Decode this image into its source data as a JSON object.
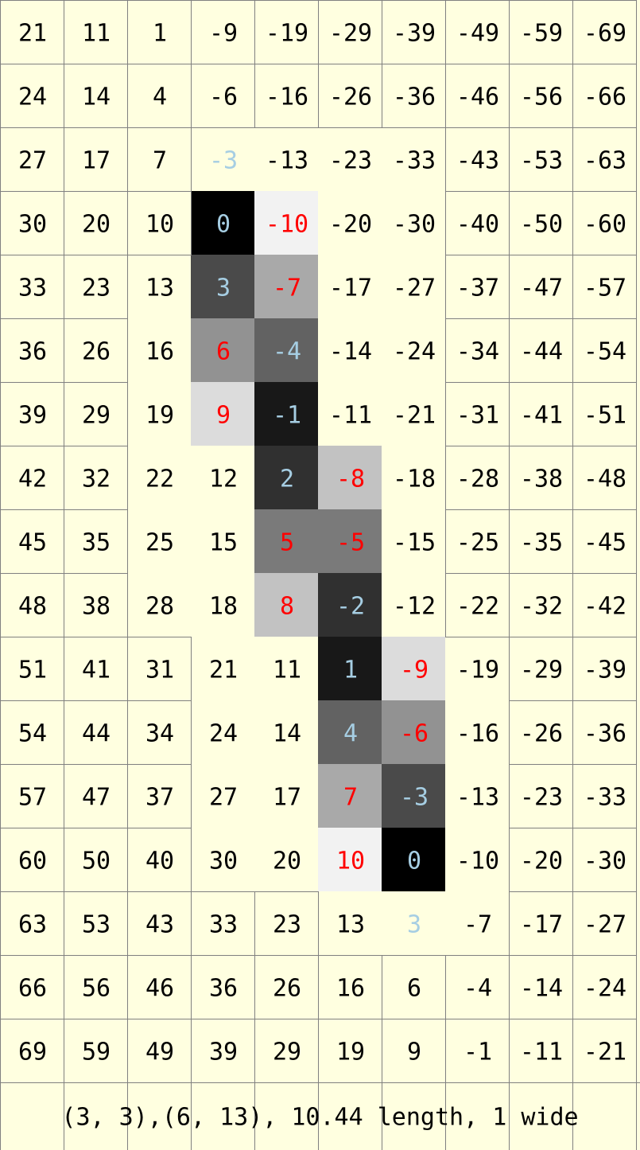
{
  "grid": {
    "columns": 10,
    "rows": [
      [
        "21",
        "11",
        "1",
        "-9",
        "-19",
        "-29",
        "-39",
        "-49",
        "-59",
        "-69"
      ],
      [
        "24",
        "14",
        "4",
        "-6",
        "-16",
        "-26",
        "-36",
        "-46",
        "-56",
        "-66"
      ],
      [
        "27",
        "17",
        "7",
        "-3",
        "-13",
        "-23",
        "-33",
        "-43",
        "-53",
        "-63"
      ],
      [
        "30",
        "20",
        "10",
        "0",
        "-10",
        "-20",
        "-30",
        "-40",
        "-50",
        "-60"
      ],
      [
        "33",
        "23",
        "13",
        "3",
        "-7",
        "-17",
        "-27",
        "-37",
        "-47",
        "-57"
      ],
      [
        "36",
        "26",
        "16",
        "6",
        "-4",
        "-14",
        "-24",
        "-34",
        "-44",
        "-54"
      ],
      [
        "39",
        "29",
        "19",
        "9",
        "-1",
        "-11",
        "-21",
        "-31",
        "-41",
        "-51"
      ],
      [
        "42",
        "32",
        "22",
        "12",
        "2",
        "-8",
        "-18",
        "-28",
        "-38",
        "-48"
      ],
      [
        "45",
        "35",
        "25",
        "15",
        "5",
        "-5",
        "-15",
        "-25",
        "-35",
        "-45"
      ],
      [
        "48",
        "38",
        "28",
        "18",
        "8",
        "-2",
        "-12",
        "-22",
        "-32",
        "-42"
      ],
      [
        "51",
        "41",
        "31",
        "21",
        "11",
        "1",
        "-9",
        "-19",
        "-29",
        "-39"
      ],
      [
        "54",
        "44",
        "34",
        "24",
        "14",
        "4",
        "-6",
        "-16",
        "-26",
        "-36"
      ],
      [
        "57",
        "47",
        "37",
        "27",
        "17",
        "7",
        "-3",
        "-13",
        "-23",
        "-33"
      ],
      [
        "60",
        "50",
        "40",
        "30",
        "20",
        "10",
        "0",
        "-10",
        "-20",
        "-30"
      ],
      [
        "63",
        "53",
        "43",
        "33",
        "23",
        "13",
        "3",
        "-7",
        "-17",
        "-27"
      ],
      [
        "66",
        "56",
        "46",
        "36",
        "26",
        "16",
        "6",
        "-4",
        "-14",
        "-24"
      ],
      [
        "69",
        "59",
        "49",
        "39",
        "29",
        "19",
        "9",
        "-1",
        "-11",
        "-21"
      ]
    ],
    "highlighted_cells": [
      {
        "row": 2,
        "col": 3,
        "shade": "#ffffe0",
        "text_color": "#a6cee3"
      },
      {
        "row": 3,
        "col": 3,
        "shade": "#000000",
        "text_color": "#a6cee3"
      },
      {
        "row": 3,
        "col": 4,
        "shade": "#f2f2f2",
        "text_color": "#ff0000"
      },
      {
        "row": 4,
        "col": 3,
        "shade": "#4a4a4a",
        "text_color": "#a6cee3"
      },
      {
        "row": 4,
        "col": 4,
        "shade": "#a9a9a9",
        "text_color": "#ff0000"
      },
      {
        "row": 5,
        "col": 3,
        "shade": "#929292",
        "text_color": "#ff0000"
      },
      {
        "row": 5,
        "col": 4,
        "shade": "#626262",
        "text_color": "#a6cee3"
      },
      {
        "row": 6,
        "col": 3,
        "shade": "#dcdcdc",
        "text_color": "#ff0000"
      },
      {
        "row": 6,
        "col": 4,
        "shade": "#181818",
        "text_color": "#a6cee3"
      },
      {
        "row": 7,
        "col": 4,
        "shade": "#303030",
        "text_color": "#a6cee3"
      },
      {
        "row": 7,
        "col": 5,
        "shade": "#c2c2c2",
        "text_color": "#ff0000"
      },
      {
        "row": 8,
        "col": 4,
        "shade": "#7a7a7a",
        "text_color": "#ff0000"
      },
      {
        "row": 8,
        "col": 5,
        "shade": "#7a7a7a",
        "text_color": "#ff0000"
      },
      {
        "row": 9,
        "col": 4,
        "shade": "#c2c2c2",
        "text_color": "#ff0000"
      },
      {
        "row": 9,
        "col": 5,
        "shade": "#303030",
        "text_color": "#a6cee3"
      },
      {
        "row": 10,
        "col": 5,
        "shade": "#181818",
        "text_color": "#a6cee3"
      },
      {
        "row": 10,
        "col": 6,
        "shade": "#dcdcdc",
        "text_color": "#ff0000"
      },
      {
        "row": 11,
        "col": 5,
        "shade": "#626262",
        "text_color": "#a6cee3"
      },
      {
        "row": 11,
        "col": 6,
        "shade": "#929292",
        "text_color": "#ff0000"
      },
      {
        "row": 12,
        "col": 5,
        "shade": "#a9a9a9",
        "text_color": "#ff0000"
      },
      {
        "row": 12,
        "col": 6,
        "shade": "#4a4a4a",
        "text_color": "#a6cee3"
      },
      {
        "row": 13,
        "col": 5,
        "shade": "#f2f2f2",
        "text_color": "#ff0000"
      },
      {
        "row": 13,
        "col": 6,
        "shade": "#000000",
        "text_color": "#a6cee3"
      },
      {
        "row": 14,
        "col": 6,
        "shade": "#ffffe0",
        "text_color": "#a6cee3"
      }
    ],
    "borderless_cells": [
      [
        2,
        4
      ],
      [
        2,
        5
      ],
      [
        2,
        6
      ],
      [
        3,
        5
      ],
      [
        3,
        6
      ],
      [
        4,
        2
      ],
      [
        4,
        5
      ],
      [
        4,
        6
      ],
      [
        5,
        2
      ],
      [
        5,
        5
      ],
      [
        5,
        6
      ],
      [
        6,
        2
      ],
      [
        6,
        5
      ],
      [
        6,
        6
      ],
      [
        7,
        2
      ],
      [
        7,
        3
      ],
      [
        7,
        6
      ],
      [
        8,
        2
      ],
      [
        8,
        3
      ],
      [
        8,
        6
      ],
      [
        9,
        2
      ],
      [
        9,
        3
      ],
      [
        9,
        6
      ],
      [
        10,
        3
      ],
      [
        10,
        4
      ],
      [
        10,
        7
      ],
      [
        11,
        3
      ],
      [
        11,
        4
      ],
      [
        11,
        7
      ],
      [
        12,
        3
      ],
      [
        12,
        4
      ],
      [
        12,
        7
      ],
      [
        13,
        3
      ],
      [
        13,
        4
      ],
      [
        13,
        7
      ],
      [
        14,
        5
      ],
      [
        14,
        7
      ]
    ]
  },
  "caption": "(3, 3),(6, 13), 10.44 length, 1 wide",
  "colors": {
    "background": "#ffffe0",
    "grid_line": "#808080",
    "default_text": "#000000"
  }
}
